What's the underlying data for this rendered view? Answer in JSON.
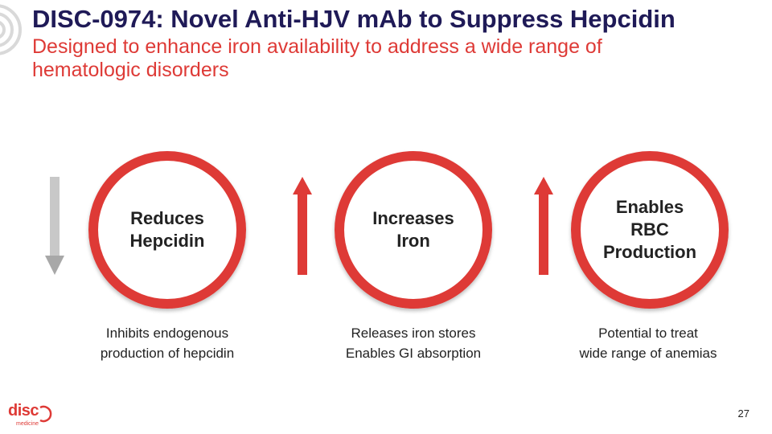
{
  "slide": {
    "title": "DISC-0974: Novel Anti-HJV mAb to Suppress Hepcidin",
    "subtitle": "Designed to enhance iron availability to address a wide range of hematologic disorders",
    "page_number": "27"
  },
  "steps": [
    {
      "label": "Reduces\nHepcidin",
      "caption": "Inhibits endogenous\nproduction of hepcidin",
      "direction": "down",
      "arrow_color": "#c8c8c8"
    },
    {
      "label": "Increases\nIron",
      "caption": "Releases iron stores\nEnables GI absorption",
      "direction": "up",
      "arrow_color": "#de3a36"
    },
    {
      "label": "Enables\nRBC\nProduction",
      "caption": "Potential to treat\nwide range of anemias",
      "direction": "up",
      "arrow_color": "#de3a36"
    }
  ],
  "logo": {
    "wordmark": "disc",
    "tagline": "medicine"
  },
  "colors": {
    "title": "#1f1a57",
    "accent": "#de3a36",
    "text": "#222222"
  }
}
